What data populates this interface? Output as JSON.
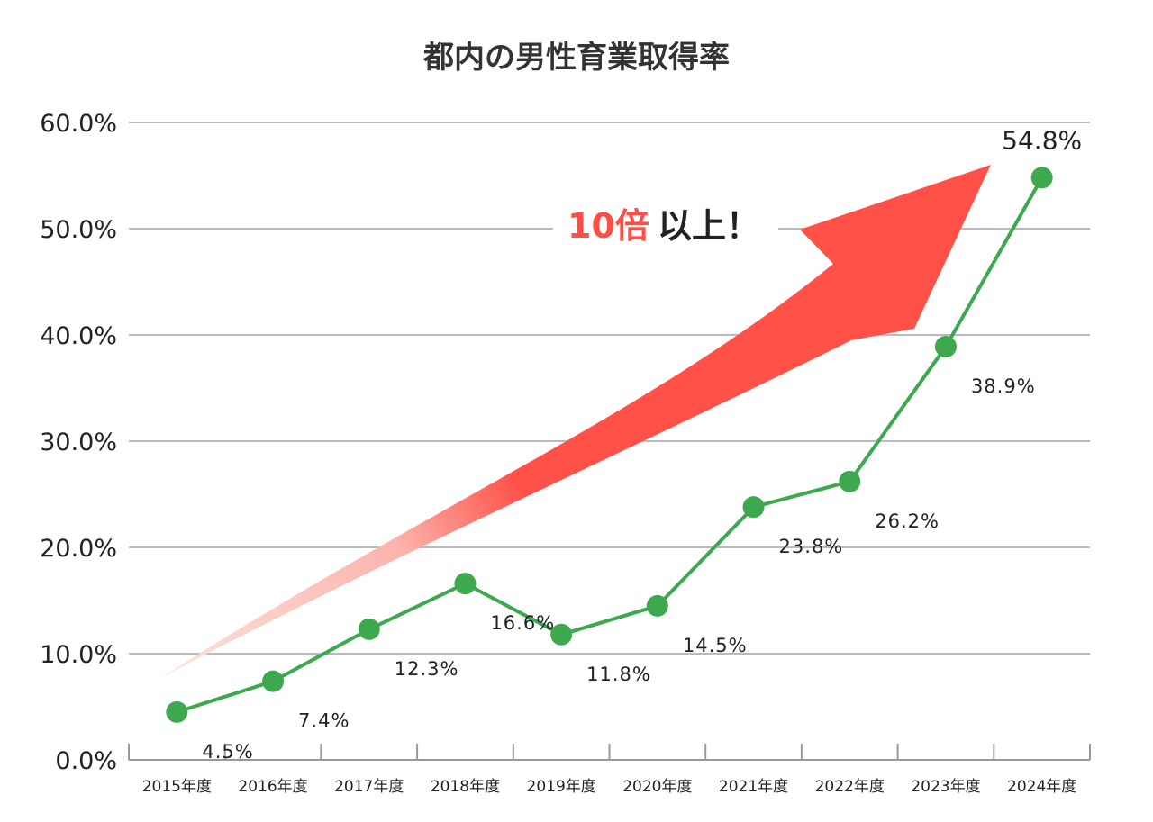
{
  "chart_data": {
    "type": "line",
    "title": "都内の男性育業取得率",
    "categories": [
      "2015年度",
      "2016年度",
      "2017年度",
      "2018年度",
      "2019年度",
      "2020年度",
      "2021年度",
      "2022年度",
      "2023年度",
      "2024年度"
    ],
    "series": [
      {
        "name": "男性育業取得率",
        "values": [
          4.5,
          7.4,
          12.3,
          16.6,
          11.8,
          14.5,
          23.8,
          26.2,
          38.9,
          54.8
        ],
        "labels": [
          "4.5%",
          "7.4%",
          "12.3%",
          "16.6%",
          "11.8%",
          "14.5%",
          "23.8%",
          "26.2%",
          "38.9%",
          "54.8%"
        ]
      }
    ],
    "y_ticks": [
      0,
      10,
      20,
      30,
      40,
      50,
      60
    ],
    "y_tick_labels": [
      "0.0%",
      "10.0%",
      "20.0%",
      "30.0%",
      "40.0%",
      "50.0%",
      "60.0%"
    ],
    "ylim": [
      0,
      60
    ],
    "xlabel": "",
    "ylabel": "",
    "grid": true,
    "annotation": {
      "emphasis": "10倍",
      "rest": "以上！"
    },
    "colors": {
      "line": "#3ea84f",
      "arrow": "#ff5148",
      "arrow_fade": "#fde3df",
      "emphasis_text": "#ff4f44",
      "grid": "#bbbbbb",
      "axis": "#999999"
    }
  }
}
